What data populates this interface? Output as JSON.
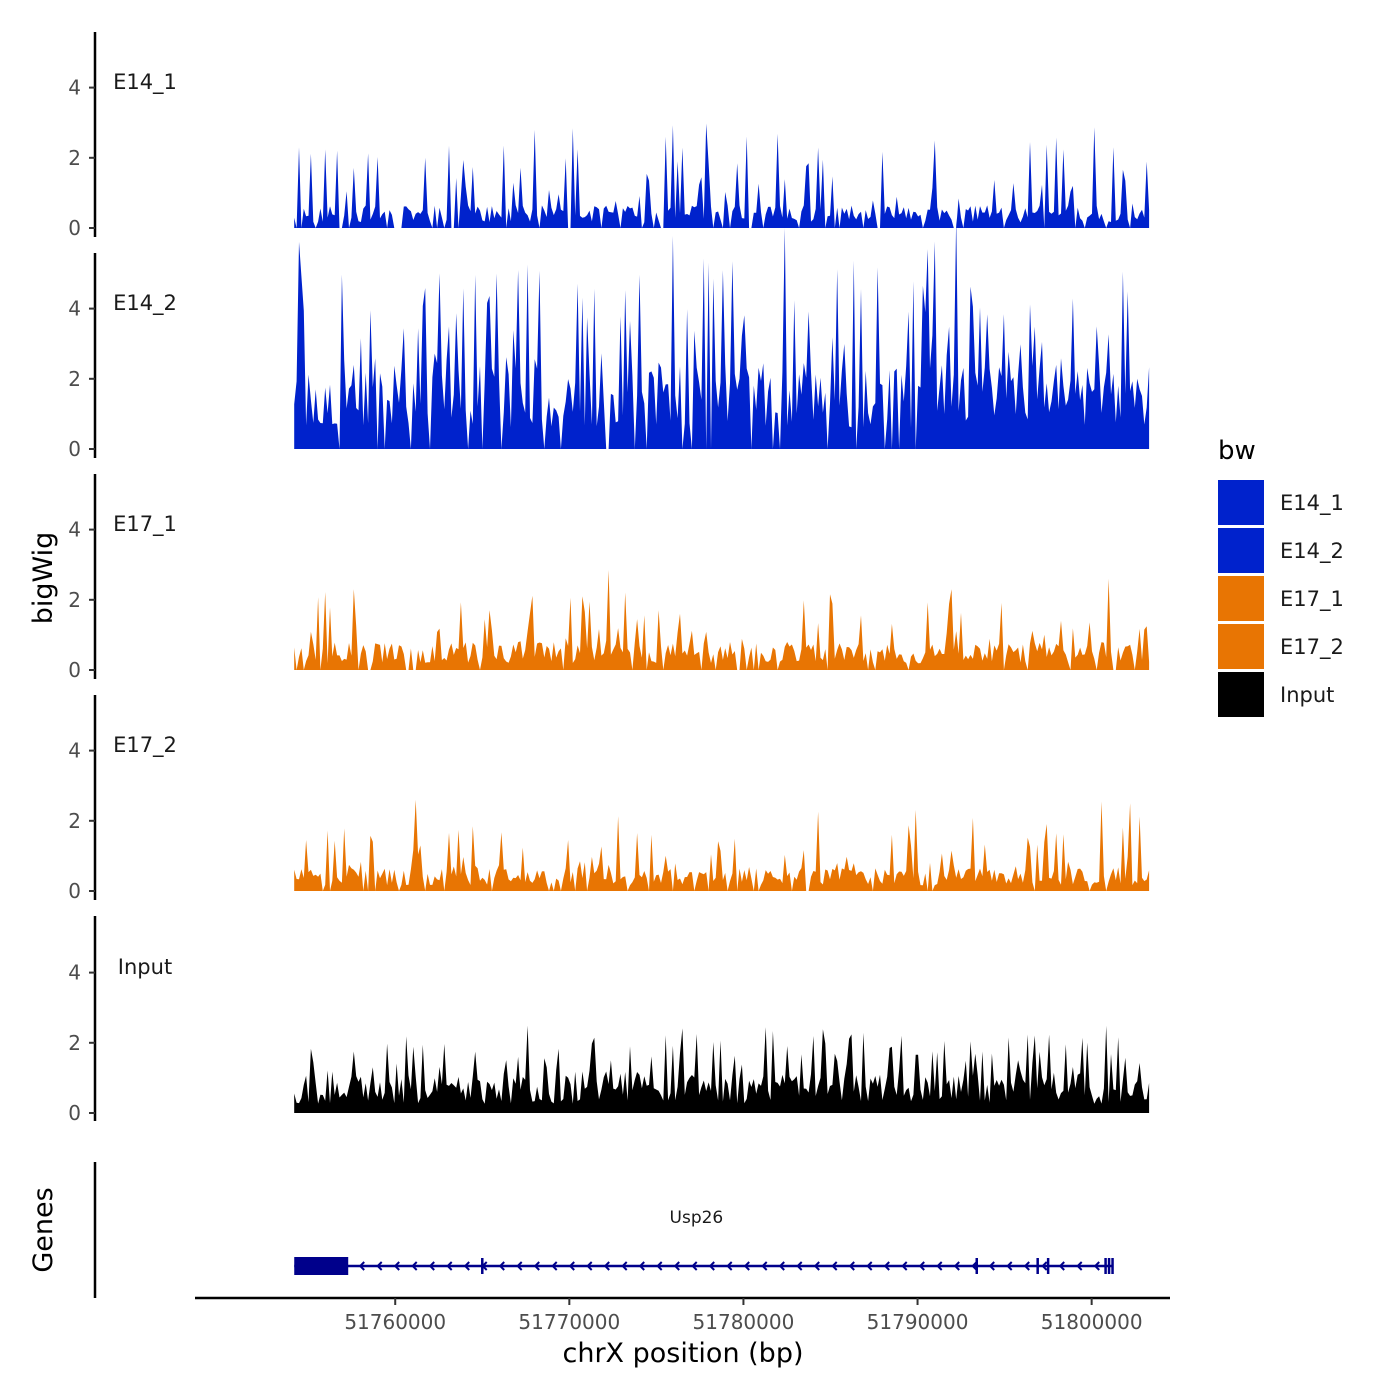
{
  "chart_data": {
    "type": "area",
    "ylabel": "bigWig",
    "genes_label": "Genes",
    "xlabel": "chrX position (bp)",
    "xlim": [
      51748500,
      51804500
    ],
    "ylim": [
      0,
      5.5
    ],
    "x_ticks": [
      51760000,
      51770000,
      51780000,
      51790000,
      51800000
    ],
    "x_tick_labels": [
      "51760000",
      "51770000",
      "51780000",
      "51790000",
      "51800000"
    ],
    "y_ticks": [
      0,
      2,
      4
    ],
    "y_tick_labels": [
      "0",
      "2",
      "4"
    ],
    "x_start": 51754200,
    "x_end": 51803300,
    "tracks": [
      {
        "name": "E14_1",
        "color": "#0022CC",
        "seed": 11,
        "base": 0.45,
        "spike_max": 2.4,
        "spike_prob": 0.22,
        "zero_prob": 0.14,
        "peaks": [
          {
            "x": 51766300,
            "y": 2.35
          },
          {
            "x": 51775600,
            "y": 2.6
          },
          {
            "x": 51796500,
            "y": 2.45
          },
          {
            "x": 51801200,
            "y": 2.3
          }
        ]
      },
      {
        "name": "E14_2",
        "color": "#0022CC",
        "seed": 23,
        "base": 1.7,
        "spike_max": 4.4,
        "spike_prob": 0.3,
        "zero_prob": 0.05,
        "peaks": [
          {
            "x": 51765800,
            "y": 5.0
          },
          {
            "x": 51767000,
            "y": 5.1
          },
          {
            "x": 51779300,
            "y": 5.35
          },
          {
            "x": 51778300,
            "y": 4.85
          }
        ]
      },
      {
        "name": "E17_1",
        "color": "#E87503",
        "seed": 37,
        "base": 0.55,
        "spike_max": 1.7,
        "spike_prob": 0.22,
        "zero_prob": 0.08,
        "peaks": [
          {
            "x": 51772200,
            "y": 2.85
          },
          {
            "x": 51771200,
            "y": 1.95
          },
          {
            "x": 51801000,
            "y": 2.6
          }
        ]
      },
      {
        "name": "E17_2",
        "color": "#E87503",
        "seed": 51,
        "base": 0.45,
        "spike_max": 1.7,
        "spike_prob": 0.22,
        "zero_prob": 0.12,
        "peaks": [
          {
            "x": 51761200,
            "y": 2.6
          },
          {
            "x": 51800600,
            "y": 2.55
          },
          {
            "x": 51802200,
            "y": 2.5
          }
        ]
      },
      {
        "name": "Input",
        "color": "#000000",
        "seed": 67,
        "base": 0.75,
        "spike_max": 1.5,
        "spike_prob": 0.3,
        "zero_prob": 0.0,
        "peaks": [
          {
            "x": 51795200,
            "y": 2.15
          },
          {
            "x": 51777300,
            "y": 2.25
          },
          {
            "x": 51791600,
            "y": 2.05
          }
        ]
      }
    ],
    "legend": {
      "title": "bw",
      "position": "right",
      "entries": [
        {
          "label": "E14_1",
          "color": "#0022CC"
        },
        {
          "label": "E14_2",
          "color": "#0022CC"
        },
        {
          "label": "E17_1",
          "color": "#E87503"
        },
        {
          "label": "E17_2",
          "color": "#E87503"
        },
        {
          "label": "Input",
          "color": "#000000"
        }
      ]
    },
    "gene": {
      "name": "Usp26",
      "start": 51754200,
      "end": 51801200,
      "strand": "-",
      "color": "#00008B",
      "thick_start": 51754200,
      "thick_end": 51757300,
      "exons": [
        51765000,
        51793400,
        51796900,
        51797500,
        51800800,
        51801000,
        51801200
      ]
    }
  }
}
